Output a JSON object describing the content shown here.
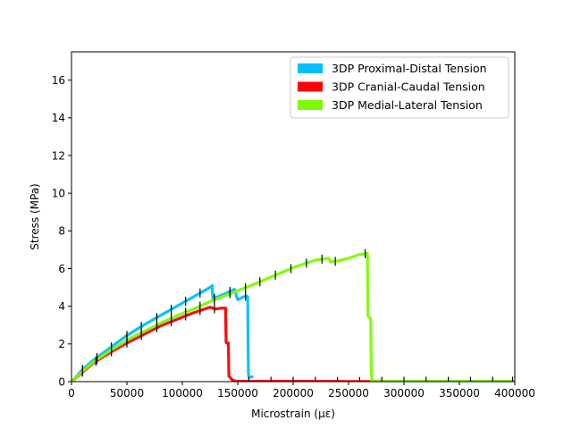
{
  "chart_data": {
    "type": "line",
    "xlabel": "Microstrain (με)",
    "ylabel": "Stress (MPa)",
    "xlim": [
      0,
      400000
    ],
    "ylim": [
      0,
      17.5
    ],
    "x_ticks": [
      0,
      50000,
      100000,
      150000,
      200000,
      250000,
      300000,
      350000,
      400000
    ],
    "x_tick_labels": [
      "0",
      "50000",
      "100000",
      "150000",
      "200000",
      "250000",
      "300000",
      "350000",
      "400000"
    ],
    "y_ticks": [
      0,
      2,
      4,
      6,
      8,
      10,
      12,
      14,
      16
    ],
    "y_tick_labels": [
      "0",
      "2",
      "4",
      "6",
      "8",
      "10",
      "12",
      "14",
      "16"
    ],
    "grid": false,
    "legend_position": "top-right",
    "series": [
      {
        "name": "3DP Proximal-Distal Tension",
        "color": "#00bfff",
        "x": [
          0,
          2000,
          10000,
          20000,
          35000,
          50000,
          65000,
          80000,
          95000,
          110000,
          125000,
          127000,
          127500,
          128000,
          140000,
          147000,
          150000,
          152000,
          155000,
          158000,
          159000,
          159300,
          159600,
          160000,
          161000,
          164000
        ],
        "y": [
          0,
          0.1,
          0.65,
          1.15,
          1.8,
          2.45,
          3.0,
          3.5,
          4.0,
          4.5,
          5.0,
          5.1,
          4.4,
          4.4,
          4.7,
          4.9,
          4.35,
          4.4,
          4.5,
          4.55,
          4.5,
          1.9,
          0.5,
          0.25,
          0.25,
          0.25
        ],
        "tick_x": [
          10000,
          23000,
          36000,
          50000,
          63000,
          77000,
          90000,
          103000,
          116000,
          129000,
          143000,
          157000
        ]
      },
      {
        "name": "3DP Cranial-Caudal Tension",
        "color": "#ff0000",
        "x": [
          0,
          2000,
          10000,
          20000,
          35000,
          50000,
          65000,
          80000,
          95000,
          110000,
          125000,
          130000,
          135000,
          139000,
          139500,
          140000,
          141500,
          142000,
          145000,
          148000,
          160000,
          200000,
          250000,
          300000,
          400000
        ],
        "y": [
          0,
          0.1,
          0.5,
          1.0,
          1.55,
          2.05,
          2.5,
          2.95,
          3.3,
          3.65,
          3.95,
          3.85,
          3.9,
          3.9,
          2.1,
          2.05,
          2.05,
          0.3,
          0.1,
          0.02,
          0.02,
          0.02,
          0.01,
          0.01,
          0.01
        ],
        "tick_x": [
          10000,
          22000,
          36000,
          50000,
          63000,
          77000,
          90000,
          103000,
          116000,
          129000,
          160000,
          180000,
          200000,
          220000,
          240000,
          260000
        ]
      },
      {
        "name": "3DP Medial-Lateral Tension",
        "color": "#7cfc00",
        "x": [
          0,
          2000,
          10000,
          20000,
          35000,
          50000,
          65000,
          80000,
          95000,
          110000,
          125000,
          140000,
          160000,
          180000,
          200000,
          220000,
          232000,
          234000,
          240000,
          250000,
          260000,
          267000,
          267500,
          268000,
          270000,
          270500,
          271000,
          280000,
          300000,
          350000,
          400000
        ],
        "y": [
          0,
          0.1,
          0.55,
          1.05,
          1.65,
          2.2,
          2.65,
          3.1,
          3.5,
          3.85,
          4.25,
          4.6,
          5.05,
          5.55,
          6.05,
          6.45,
          6.55,
          6.35,
          6.4,
          6.55,
          6.75,
          6.8,
          3.5,
          3.45,
          3.35,
          0.5,
          0.05,
          0.02,
          0.02,
          0.02,
          0.02
        ],
        "tick_x": [
          10000,
          23000,
          36000,
          50000,
          63000,
          77000,
          90000,
          103000,
          116000,
          129000,
          143000,
          157000,
          170000,
          184000,
          198000,
          212000,
          226000,
          238000,
          265000,
          280000,
          300000,
          320000,
          340000,
          360000,
          380000,
          398000
        ]
      }
    ]
  }
}
